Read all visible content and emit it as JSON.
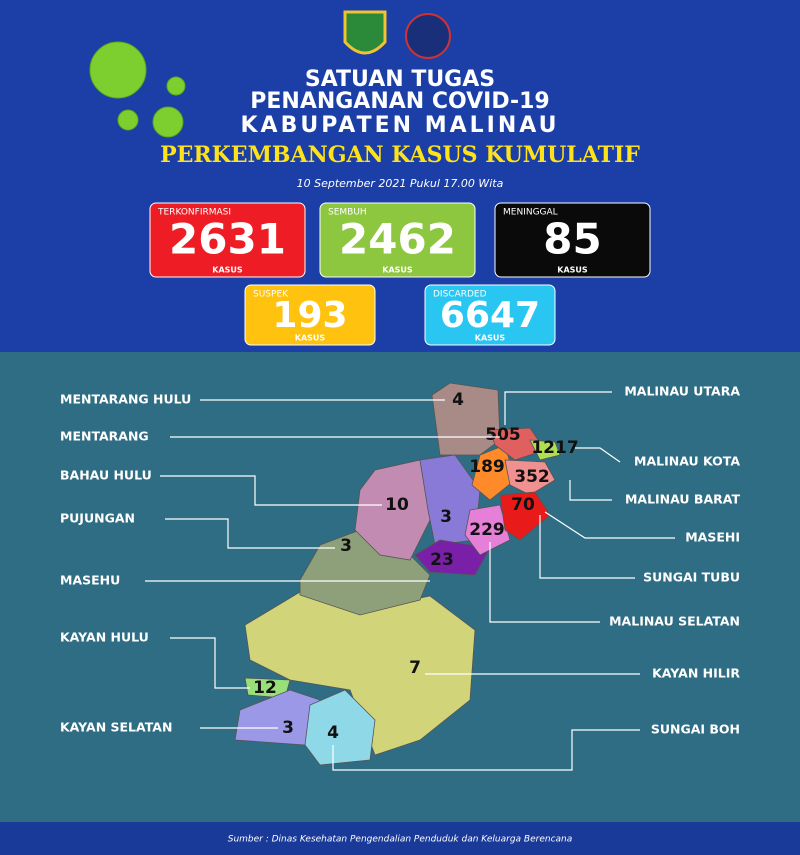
{
  "header": {
    "title_lines": [
      "SATUAN TUGAS",
      "PENANGANAN COVID-19",
      "KABUPATEN MALINAU"
    ],
    "subtitle": "PERKEMBANGAN KASUS KUMULATIF",
    "date": "10 September 2021 Pukul 17.00 Wita"
  },
  "stats": [
    {
      "label": "TERKONFIRMASI",
      "value": 2631,
      "unit": "KASUS"
    },
    {
      "label": "SEMBUH",
      "value": 2462,
      "unit": "KASUS"
    },
    {
      "label": "MENINGGAL",
      "value": 85,
      "unit": "KASUS"
    },
    {
      "label": "SUSPEK",
      "value": 193,
      "unit": "KASUS"
    },
    {
      "label": "DISCARDED",
      "value": 6647,
      "unit": "KASUS"
    }
  ],
  "regions": [
    {
      "name": "MENTARANG HULU",
      "cases": 4
    },
    {
      "name": "MALINAU UTARA",
      "cases": 505
    },
    {
      "name": "MENTARANG",
      "cases": 189
    },
    {
      "name": "MALINAU KOTA",
      "cases": 1217
    },
    {
      "name": "BAHAU HULU",
      "cases": 10
    },
    {
      "name": "MALINAU BARAT",
      "cases": 352
    },
    {
      "name": "PUJUNGAN",
      "cases": 3
    },
    {
      "name": "MASEHI",
      "cases": 70
    },
    {
      "name": "SUNGAI TUBU",
      "cases": 3
    },
    {
      "name": "MALINAU SELATAN",
      "cases": 229
    },
    {
      "name": "MASEHU",
      "cases": 23
    },
    {
      "name": "KAYAN HULU",
      "cases": 12
    },
    {
      "name": "KAYAN HILIR",
      "cases": 7
    },
    {
      "name": "KAYAN SELATAN",
      "cases": 3
    },
    {
      "name": "SUNGAI BOH",
      "cases": 4
    }
  ],
  "source": "Sumber : Dinas Kesehatan Pengendalian Penduduk dan Keluarga Berencana"
}
